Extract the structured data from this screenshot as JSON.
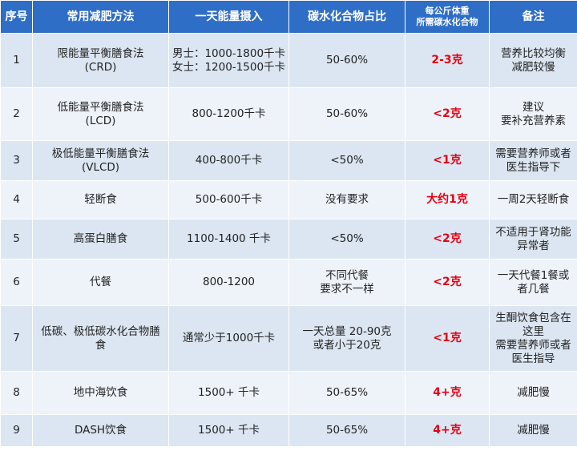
{
  "table": {
    "headers": [
      "序号",
      "常用减肥方法",
      "一天能量摄入",
      "碳水化合物占比",
      "每公斤体重\n所需碳水化合物",
      "备注"
    ],
    "rows": [
      {
        "no": "1",
        "method": "限能量平衡膳食法\n(CRD)",
        "energy": "男士：1000-1800千卡\n女士：1200-1500千卡",
        "carb": "50-60%",
        "per_kg": "2-3克",
        "note": "营养比较均衡\n减肥较慢"
      },
      {
        "no": "2",
        "method": "低能量平衡膳食法\n(LCD)",
        "energy": "800-1200千卡",
        "carb": "50-60%",
        "per_kg": "<2克",
        "note": "建议\n要补充营养素"
      },
      {
        "no": "3",
        "method": "极低能量平衡膳食法\n(VLCD)",
        "energy": "400-800千卡",
        "carb": "<50%",
        "per_kg": "<1克",
        "note": "需要营养师或者\n医生指导下"
      },
      {
        "no": "4",
        "method": "轻断食",
        "energy": "500-600千卡",
        "carb": "没有要求",
        "per_kg": "大约1克",
        "note": "一周2天轻断食"
      },
      {
        "no": "5",
        "method": "高蛋白膳食",
        "energy": "1100-1400 千卡",
        "carb": "<50%",
        "per_kg": "<2克",
        "note": "不适用于肾功能\n异常者"
      },
      {
        "no": "6",
        "method": "代餐",
        "energy": "800-1200",
        "carb": "不同代餐\n要求不一样",
        "per_kg": "<2克",
        "note": "一天代餐1餐或\n者几餐"
      },
      {
        "no": "7",
        "method": "低碳、极低碳水化合物膳\n食",
        "energy": "通常少于1000千卡",
        "carb": "一天总量 20-90克\n或者小于20克",
        "per_kg": "<1克",
        "note": "生酮饮食包含在\n这里\n需要营养师或者\n医生指导"
      },
      {
        "no": "8",
        "method": "地中海饮食",
        "energy": "1500+ 千卡",
        "carb": "50-65%",
        "per_kg": "4+克",
        "note": "减肥慢"
      },
      {
        "no": "9",
        "method": "DASH饮食",
        "energy": "1500+ 千卡",
        "carb": "50-65%",
        "per_kg": "4+克",
        "note": "减肥慢"
      }
    ]
  },
  "colors": {
    "header_bg": "#2e6ec6",
    "row_odd": "#dce6f2",
    "row_even": "#eef3fa",
    "highlight_red": "#e60012"
  }
}
